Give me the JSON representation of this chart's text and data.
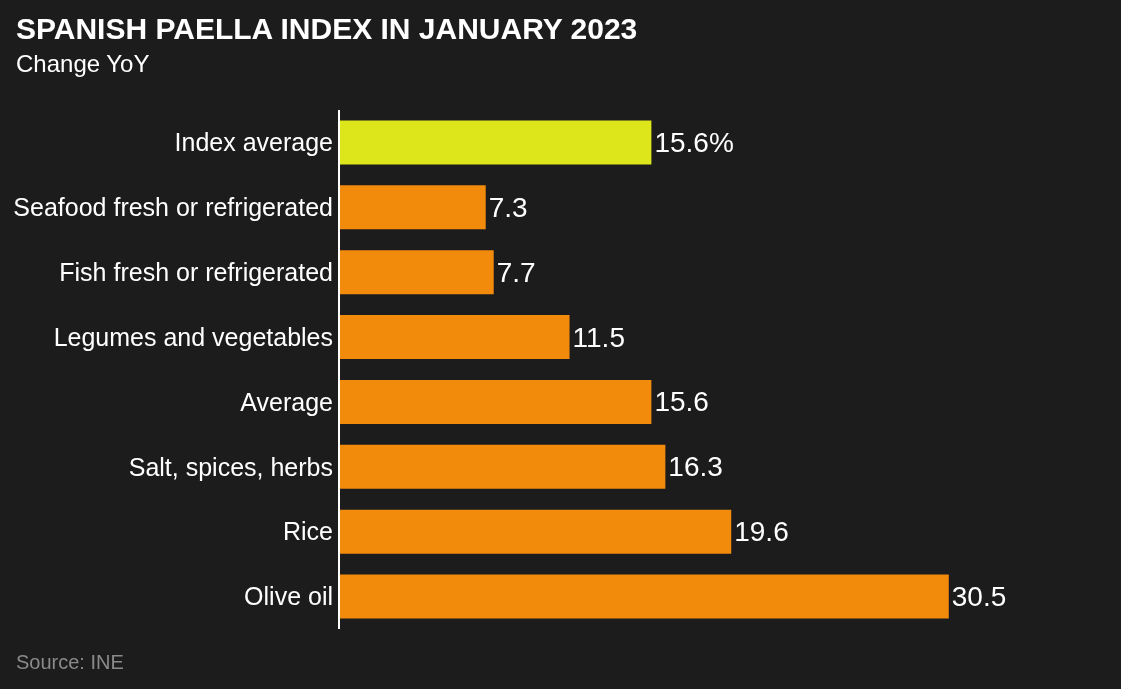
{
  "chart_data": {
    "type": "bar",
    "orientation": "horizontal",
    "title": "SPANISH PAELLA INDEX IN JANUARY 2023",
    "subtitle": "Change YoY",
    "categories": [
      "Index average",
      "Seafood fresh or refrigerated",
      "Fish fresh or refrigerated",
      "Legumes and vegetables",
      "Average",
      "Salt, spices, herbs",
      "Rice",
      "Olive oil"
    ],
    "values": [
      15.6,
      7.3,
      7.7,
      11.5,
      15.6,
      16.3,
      19.6,
      30.5
    ],
    "colors": [
      "#dde61a",
      "#f28a0c",
      "#f28a0c",
      "#f28a0c",
      "#f28a0c",
      "#f28a0c",
      "#f28a0c",
      "#f28a0c"
    ],
    "value_labels": [
      "15.6%",
      "7.3",
      "7.7",
      "11.5",
      "15.6",
      "16.3",
      "19.6",
      "30.5"
    ],
    "annotations": [
      "Source: INE"
    ],
    "grid": false,
    "legend": false
  }
}
